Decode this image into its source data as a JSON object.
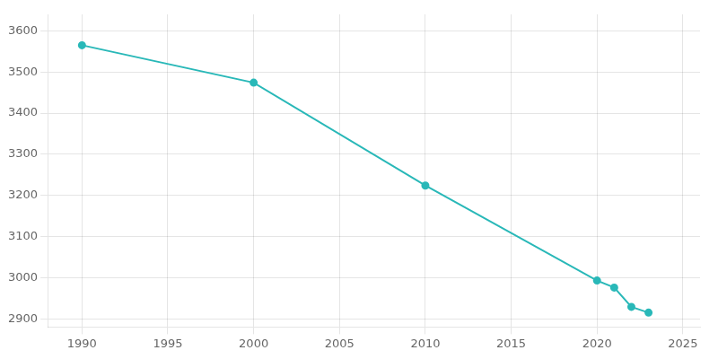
{
  "chart_data": {
    "type": "line",
    "x": [
      1990,
      2000,
      2010,
      2020,
      2021,
      2022,
      2023
    ],
    "values": [
      3565,
      3474,
      3224,
      2993,
      2976,
      2929,
      2915
    ],
    "color": "#29b8b8",
    "marker": "circle",
    "xlim": [
      1988,
      2026
    ],
    "ylim": [
      2880,
      3640
    ],
    "xticks": [
      1990,
      1995,
      2000,
      2005,
      2010,
      2015,
      2020,
      2025
    ],
    "yticks": [
      2900,
      3000,
      3100,
      3200,
      3300,
      3400,
      3500,
      3600
    ],
    "grid": true
  }
}
